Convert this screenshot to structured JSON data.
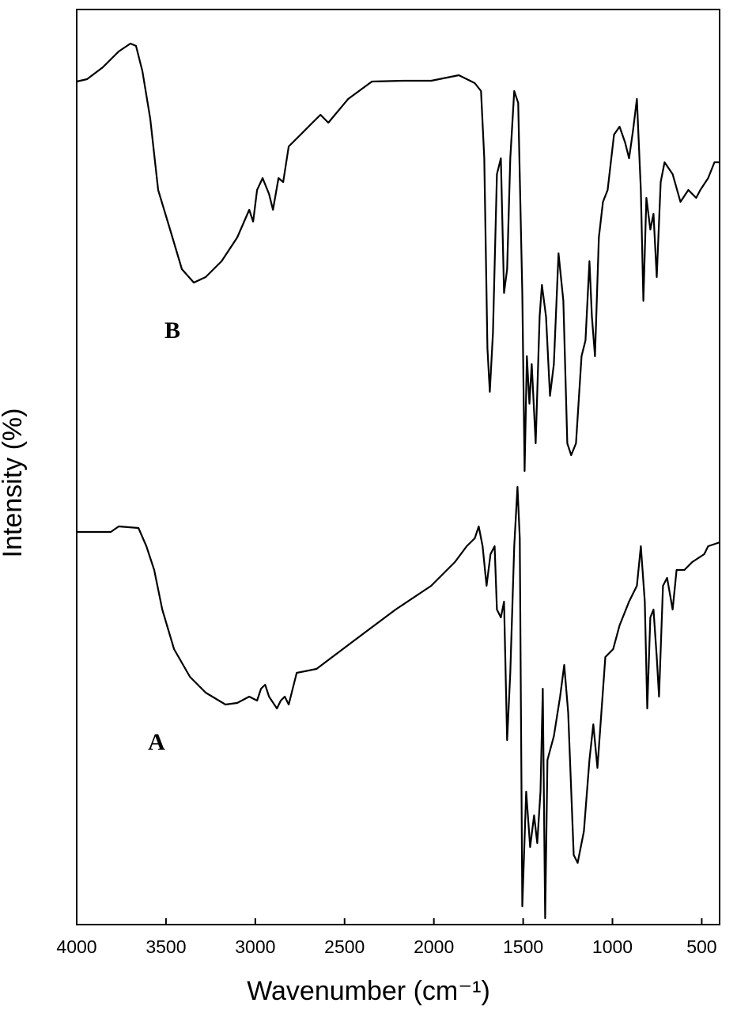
{
  "chart_data": {
    "type": "line",
    "x_label": "Wavenumber (cm⁻¹)",
    "y_label": "Intensity (%)",
    "xlim": [
      4000,
      400
    ],
    "xticks": [
      4000,
      3500,
      3000,
      2500,
      2000,
      1500,
      1000,
      500
    ],
    "ylim": [
      0,
      115.6
    ],
    "color": "#000000",
    "series": [
      {
        "name": "B",
        "color": "#000000",
        "x": [
          4000,
          3942,
          3854,
          3765,
          3699,
          3668,
          3632,
          3588,
          3544,
          3477,
          3411,
          3344,
          3278,
          3189,
          3101,
          3034,
          3012,
          2990,
          2959,
          2923,
          2901,
          2870,
          2844,
          2813,
          2746,
          2680,
          2635,
          2591,
          2480,
          2347,
          2170,
          2015,
          1860,
          1771,
          1736,
          1718,
          1700,
          1687,
          1669,
          1647,
          1625,
          1607,
          1590,
          1572,
          1550,
          1528,
          1505,
          1492,
          1479,
          1465,
          1452,
          1430,
          1408,
          1395,
          1372,
          1350,
          1328,
          1302,
          1275,
          1253,
          1231,
          1204,
          1173,
          1151,
          1129,
          1115,
          1098,
          1076,
          1053,
          1027,
          991,
          960,
          929,
          907,
          885,
          863,
          841,
          827,
          810,
          788,
          770,
          752,
          730,
          708,
          663,
          619,
          575,
          531,
          508,
          464,
          429,
          398
        ],
        "values": [
          106.5,
          106.8,
          108.3,
          110.3,
          111.3,
          111,
          107.8,
          101.8,
          92.8,
          87.8,
          82.8,
          81.1,
          81.8,
          83.8,
          86.8,
          90.3,
          88.8,
          92.8,
          94.3,
          92.3,
          90.3,
          94.3,
          93.8,
          98.3,
          99.8,
          101.3,
          102.3,
          101.3,
          104.3,
          106.5,
          106.6,
          106.6,
          107.3,
          106.3,
          105.3,
          96.8,
          72.8,
          67.3,
          74.8,
          94.8,
          96.8,
          79.8,
          82.8,
          96.8,
          105.3,
          103.8,
          79.8,
          57.3,
          71.8,
          65.8,
          70.8,
          60.8,
          76.8,
          80.8,
          76.8,
          66.8,
          70.8,
          84.8,
          78.8,
          60.8,
          59.3,
          60.8,
          71.8,
          73.8,
          83.8,
          76.8,
          71.8,
          86.8,
          91.3,
          92.8,
          99.8,
          100.8,
          98.8,
          96.8,
          100.3,
          104.3,
          92.8,
          78.8,
          91.8,
          87.8,
          89.8,
          81.8,
          93.8,
          96.3,
          94.8,
          91.3,
          92.8,
          91.8,
          92.8,
          94.3,
          96.3,
          96.3
        ]
      },
      {
        "name": "A",
        "color": "#000000",
        "x": [
          4000,
          3809,
          3765,
          3654,
          3610,
          3566,
          3521,
          3455,
          3366,
          3278,
          3167,
          3101,
          3034,
          2990,
          2968,
          2945,
          2923,
          2879,
          2857,
          2835,
          2813,
          2768,
          2657,
          2569,
          2392,
          2214,
          2015,
          1882,
          1816,
          1771,
          1749,
          1727,
          1705,
          1683,
          1660,
          1647,
          1625,
          1607,
          1590,
          1572,
          1550,
          1532,
          1519,
          1505,
          1483,
          1461,
          1439,
          1421,
          1403,
          1390,
          1377,
          1364,
          1328,
          1293,
          1270,
          1248,
          1217,
          1195,
          1160,
          1129,
          1107,
          1084,
          1062,
          1040,
          996,
          960,
          907,
          863,
          841,
          819,
          805,
          788,
          770,
          752,
          739,
          717,
          694,
          663,
          641,
          597,
          553,
          486,
          464,
          398
        ],
        "values": [
          49.6,
          49.6,
          50.3,
          50.1,
          47.8,
          44.8,
          39.8,
          34.8,
          31.3,
          29.3,
          27.8,
          28,
          28.8,
          28.3,
          29.8,
          30.3,
          28.8,
          27.3,
          28.3,
          28.8,
          27.8,
          31.8,
          32.3,
          33.8,
          36.8,
          39.8,
          42.8,
          45.8,
          47.8,
          48.8,
          50.3,
          47.8,
          42.8,
          46.8,
          47.8,
          39.8,
          38.8,
          40.8,
          23.3,
          31.8,
          47.8,
          55.3,
          48.8,
          2.3,
          16.8,
          9.8,
          13.8,
          10.3,
          16.8,
          29.8,
          0.8,
          20.8,
          23.8,
          28.8,
          32.8,
          26.8,
          8.8,
          7.8,
          11.8,
          20.8,
          25.3,
          19.8,
          26.8,
          33.8,
          34.8,
          37.8,
          40.8,
          42.8,
          47.8,
          40.8,
          27.3,
          38.8,
          39.8,
          33.8,
          28.8,
          42.8,
          43.8,
          39.8,
          44.8,
          44.8,
          45.8,
          46.8,
          47.8,
          48.3
        ]
      }
    ]
  }
}
